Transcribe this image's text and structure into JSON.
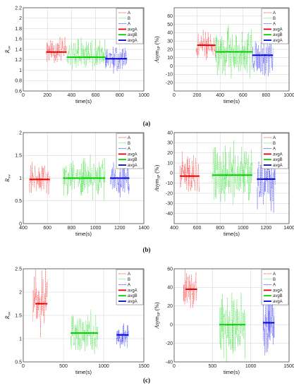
{
  "chart_data": [
    {
      "type": "line",
      "panel": "(a)",
      "caption": "(a)",
      "side": "left",
      "ylabel": "R",
      "ylabel_sub": "sw",
      "xlabel": "time(s)",
      "xlim": [
        0,
        1000
      ],
      "ylim": [
        0.6,
        2.2
      ],
      "xticks": [
        "0",
        "200",
        "400",
        "600",
        "800",
        "1000"
      ],
      "yticks": [
        "0.6",
        "0.8",
        "1",
        "1.2",
        "1.4",
        "1.6",
        "1.8",
        "2",
        "2.2"
      ],
      "legend": [
        "A",
        "B",
        "A",
        "avgA",
        "avgB",
        "avgA"
      ],
      "series": [
        {
          "name": "A",
          "color": "#ff3333",
          "style": "dashed",
          "x_range": [
            190,
            360
          ],
          "center": 1.4,
          "amp": 0.35,
          "seed": 11
        },
        {
          "name": "B",
          "color": "#33dd33",
          "style": "dashed",
          "x_range": [
            360,
            680
          ],
          "center": 1.3,
          "amp": 0.35,
          "seed": 12
        },
        {
          "name": "A",
          "color": "#3333ff",
          "style": "dashed",
          "x_range": [
            680,
            860
          ],
          "center": 1.2,
          "amp": 0.3,
          "seed": 13
        }
      ],
      "averages": [
        {
          "name": "avgA",
          "color": "#e60000",
          "x_range": [
            190,
            360
          ],
          "y": 1.35
        },
        {
          "name": "avgB",
          "color": "#00cc00",
          "x_range": [
            360,
            680
          ],
          "y": 1.25
        },
        {
          "name": "avgA",
          "color": "#0000dd",
          "x_range": [
            680,
            860
          ],
          "y": 1.22
        }
      ],
      "grid": true
    },
    {
      "type": "line",
      "panel": "(a)",
      "side": "right",
      "ylabel": "Asym",
      "ylabel_sub": "SP",
      "ylabel_suffix": " (%)",
      "xlabel": "time(s)",
      "xlim": [
        0,
        1000
      ],
      "ylim": [
        -30,
        70
      ],
      "xticks": [
        "0",
        "200",
        "400",
        "600",
        "800",
        "1000"
      ],
      "yticks": [
        "-20",
        "-10",
        "0",
        "10",
        "20",
        "30",
        "40",
        "50",
        "60"
      ],
      "legend": [
        "A",
        "B",
        "A",
        "avgA",
        "avgB",
        "avgA"
      ],
      "series": [
        {
          "name": "A",
          "color": "#ff3333",
          "style": "dashed",
          "x_range": [
            190,
            360
          ],
          "center": 25,
          "amp": 22,
          "seed": 21
        },
        {
          "name": "B",
          "color": "#33dd33",
          "style": "dashed",
          "x_range": [
            360,
            680
          ],
          "center": 17,
          "amp": 35,
          "seed": 22
        },
        {
          "name": "A",
          "color": "#3333ff",
          "style": "dashed",
          "x_range": [
            680,
            860
          ],
          "center": 13,
          "amp": 28,
          "seed": 23
        }
      ],
      "averages": [
        {
          "name": "avgA",
          "color": "#e60000",
          "x_range": [
            200,
            360
          ],
          "y": 25
        },
        {
          "name": "avgB",
          "color": "#00cc00",
          "x_range": [
            360,
            680
          ],
          "y": 17
        },
        {
          "name": "avgA",
          "color": "#0000dd",
          "x_range": [
            680,
            860
          ],
          "y": 13
        }
      ],
      "grid": true
    },
    {
      "type": "line",
      "panel": "(b)",
      "caption": "(b)",
      "side": "left",
      "ylabel": "R",
      "ylabel_sub": "sw",
      "xlabel": "time(s)",
      "xlim": [
        400,
        1400
      ],
      "ylim": [
        0,
        2
      ],
      "xticks": [
        "400",
        "600",
        "800",
        "1000",
        "1200",
        "1400"
      ],
      "yticks": [
        "0",
        "0.5",
        "1",
        "1.5",
        "2"
      ],
      "legend": [
        "A",
        "B",
        "A",
        "avgA",
        "avgB",
        "avgA"
      ],
      "series": [
        {
          "name": "A",
          "color": "#ff3333",
          "style": "dashed",
          "x_range": [
            450,
            620
          ],
          "center": 1.0,
          "amp": 0.4,
          "seed": 31
        },
        {
          "name": "B",
          "color": "#33dd33",
          "style": "dashed",
          "x_range": [
            730,
            1080
          ],
          "center": 1.0,
          "amp": 0.55,
          "seed": 32
        },
        {
          "name": "A",
          "color": "#3333ff",
          "style": "dashed",
          "x_range": [
            1120,
            1280
          ],
          "center": 1.0,
          "amp": 0.5,
          "seed": 33
        }
      ],
      "averages": [
        {
          "name": "avgA",
          "color": "#e60000",
          "x_range": [
            450,
            620
          ],
          "y": 0.97
        },
        {
          "name": "avgB",
          "color": "#00cc00",
          "x_range": [
            730,
            1080
          ],
          "y": 1.0
        },
        {
          "name": "avgA",
          "color": "#0000dd",
          "x_range": [
            1120,
            1280
          ],
          "y": 1.0
        }
      ],
      "grid": true
    },
    {
      "type": "line",
      "panel": "(b)",
      "side": "right",
      "ylabel": "Asym",
      "ylabel_sub": "SP",
      "ylabel_suffix": " (%)",
      "xlabel": "time(s)",
      "xlim": [
        400,
        1400
      ],
      "ylim": [
        -50,
        40
      ],
      "xticks": [
        "400",
        "600",
        "800",
        "1000",
        "1200",
        "1400"
      ],
      "yticks": [
        "-40",
        "-30",
        "-20",
        "-10",
        "0",
        "10",
        "20",
        "30",
        "40"
      ],
      "legend": [
        "A",
        "B",
        "A",
        "avgA",
        "avgB",
        "avgA"
      ],
      "series": [
        {
          "name": "A",
          "color": "#ff3333",
          "style": "dashed",
          "x_range": [
            450,
            620
          ],
          "center": -2,
          "amp": 25,
          "seed": 41
        },
        {
          "name": "B",
          "color": "#33dd33",
          "style": "dashed",
          "x_range": [
            730,
            1080
          ],
          "center": -2,
          "amp": 35,
          "seed": 42
        },
        {
          "name": "A",
          "color": "#3333ff",
          "style": "dashed",
          "x_range": [
            1120,
            1280
          ],
          "center": -6,
          "amp": 38,
          "seed": 43
        }
      ],
      "averages": [
        {
          "name": "avgA",
          "color": "#e60000",
          "x_range": [
            450,
            620
          ],
          "y": -3
        },
        {
          "name": "avgB",
          "color": "#00cc00",
          "x_range": [
            730,
            1080
          ],
          "y": -2
        },
        {
          "name": "avgA",
          "color": "#0000dd",
          "x_range": [
            1120,
            1280
          ],
          "y": -6
        }
      ],
      "grid": true
    },
    {
      "type": "line",
      "panel": "(c)",
      "caption": "(c)",
      "side": "left",
      "ylabel": "R",
      "ylabel_sub": "sw",
      "xlabel": "time(s)",
      "xlim": [
        0,
        1500
      ],
      "ylim": [
        0.5,
        2.5
      ],
      "xticks": [
        "0",
        "500",
        "1000",
        "1500"
      ],
      "yticks": [
        "0.5",
        "1",
        "1.5",
        "2",
        "2.5"
      ],
      "legend": [
        "A",
        "B",
        "A",
        "avgA",
        "avgB",
        "avgA"
      ],
      "series": [
        {
          "name": "A",
          "color": "#ff3333",
          "style": "dashed",
          "x_range": [
            120,
            300
          ],
          "center": 1.75,
          "amp": 0.85,
          "seed": 51
        },
        {
          "name": "B",
          "color": "#33dd33",
          "style": "dashed",
          "x_range": [
            590,
            930
          ],
          "center": 1.12,
          "amp": 0.55,
          "seed": 52
        },
        {
          "name": "A",
          "color": "#3333ff",
          "style": "dashed",
          "x_range": [
            1160,
            1310
          ],
          "center": 1.08,
          "amp": 0.35,
          "seed": 53
        }
      ],
      "averages": [
        {
          "name": "avgA",
          "color": "#e60000",
          "x_range": [
            150,
            300
          ],
          "y": 1.75
        },
        {
          "name": "avgB",
          "color": "#00cc00",
          "x_range": [
            590,
            930
          ],
          "y": 1.12
        },
        {
          "name": "avgA",
          "color": "#0000dd",
          "x_range": [
            1160,
            1310
          ],
          "y": 1.08
        }
      ],
      "grid": true
    },
    {
      "type": "line",
      "panel": "(c)",
      "side": "right",
      "ylabel": "Asym",
      "ylabel_sub": "SP",
      "ylabel_suffix": " (%)",
      "xlabel": "time(s)",
      "xlim": [
        0,
        1500
      ],
      "ylim": [
        -40,
        60
      ],
      "xticks": [
        "0",
        "500",
        "1000",
        "1500"
      ],
      "yticks": [
        "-40",
        "-20",
        "0",
        "20",
        "40",
        "60"
      ],
      "legend": [
        "A",
        "B",
        "A",
        "avgA",
        "avgB",
        "avgA"
      ],
      "series": [
        {
          "name": "A",
          "color": "#ff3333",
          "style": "dashed",
          "x_range": [
            120,
            300
          ],
          "center": 38,
          "amp": 28,
          "seed": 61
        },
        {
          "name": "B",
          "color": "#33dd33",
          "style": "dashed",
          "x_range": [
            590,
            930
          ],
          "center": 0,
          "amp": 45,
          "seed": 62
        },
        {
          "name": "A",
          "color": "#3333ff",
          "style": "dashed",
          "x_range": [
            1160,
            1310
          ],
          "center": 2,
          "amp": 40,
          "seed": 63
        }
      ],
      "averages": [
        {
          "name": "avgA",
          "color": "#e60000",
          "x_range": [
            150,
            300
          ],
          "y": 38
        },
        {
          "name": "avgB",
          "color": "#00cc00",
          "x_range": [
            590,
            930
          ],
          "y": 0
        },
        {
          "name": "avgA",
          "color": "#0000dd",
          "x_range": [
            1160,
            1310
          ],
          "y": 2
        }
      ],
      "grid": true
    }
  ]
}
